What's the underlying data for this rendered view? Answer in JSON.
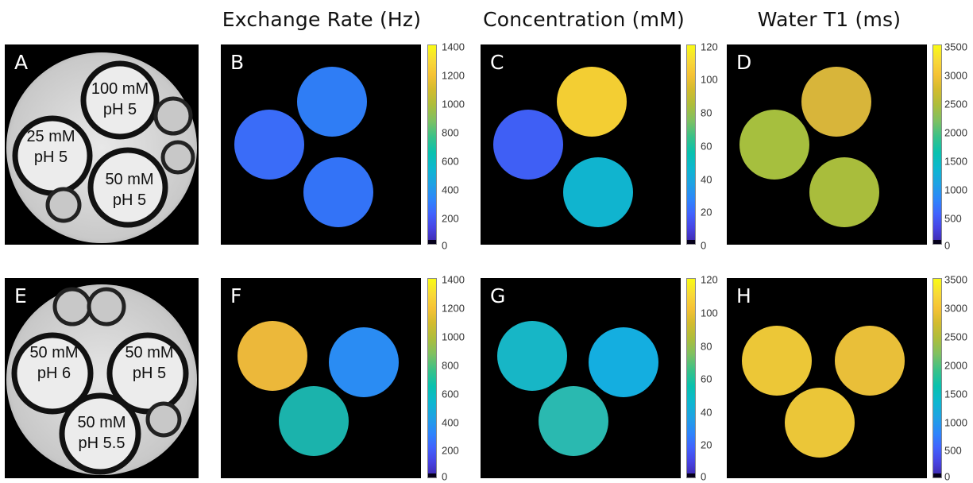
{
  "column_titles": [
    "Exchange Rate (Hz)",
    "Concentration (mM)",
    "Water T1 (ms)"
  ],
  "panel_letters": [
    "A",
    "B",
    "C",
    "D",
    "E",
    "F",
    "G",
    "H"
  ],
  "phantom_labels": {
    "A": [
      [
        "100 mM",
        "pH 5"
      ],
      [
        "25 mM",
        "pH 5"
      ],
      [
        "50 mM",
        "pH 5"
      ]
    ],
    "E": [
      [
        "50 mM",
        "pH 6"
      ],
      [
        "50 mM",
        "pH 5"
      ],
      [
        "50 mM",
        "pH 5.5"
      ]
    ]
  },
  "colorbars": {
    "exchange": [
      "1400",
      "1200",
      "1000",
      "800",
      "600",
      "400",
      "200",
      "0"
    ],
    "concentration": [
      "120",
      "100",
      "80",
      "60",
      "40",
      "20",
      "0"
    ],
    "t1": [
      "3500",
      "3000",
      "2500",
      "2000",
      "1500",
      "1000",
      "500",
      "0"
    ]
  },
  "map_levels": {
    "exchange_units": "Hz",
    "concentration_units": "mM",
    "t1_units": "ms",
    "row1": {
      "exchange": [
        420,
        370,
        380
      ],
      "concentration": [
        105,
        25,
        55
      ],
      "t1": [
        2800,
        2200,
        2300
      ]
    },
    "row2": {
      "exchange": [
        1150,
        450,
        750
      ],
      "concentration": [
        55,
        52,
        62
      ],
      "t1": [
        2900,
        2800,
        2850
      ]
    }
  },
  "colors": {
    "background": "#000000",
    "title_text": "#111111",
    "letter_text": "#ffffff"
  }
}
